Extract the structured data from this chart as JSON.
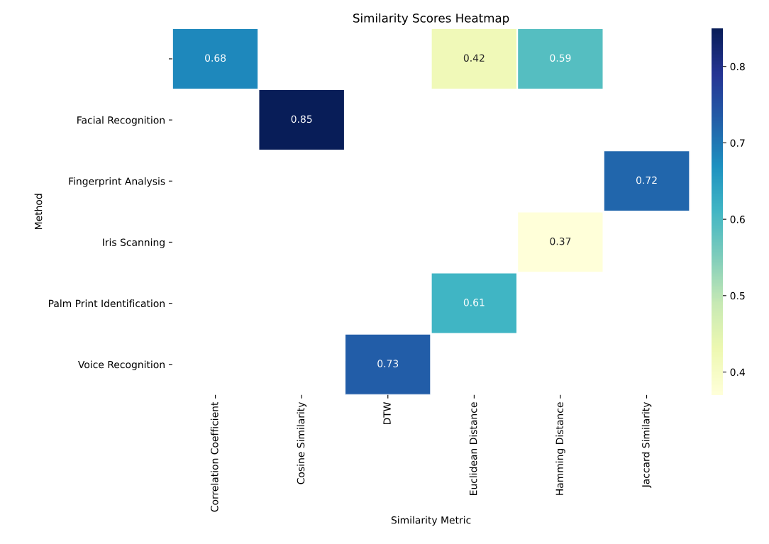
{
  "chart_data": {
    "type": "heatmap",
    "title": "Similarity Scores Heatmap",
    "xlabel": "Similarity Metric",
    "ylabel": "Method",
    "categories": [
      "Correlation Coefficient",
      "Cosine Similarity",
      "DTW",
      "Euclidean Distance",
      "Hamming Distance",
      "Jaccard Similarity"
    ],
    "y_categories": [
      null,
      "Facial Recognition",
      "Fingerprint Analysis",
      "Iris Scanning",
      "Palm Print Identification",
      "Voice Recognition"
    ],
    "cells": [
      [
        0.68,
        null,
        null,
        0.42,
        0.59,
        null
      ],
      [
        null,
        0.85,
        null,
        null,
        null,
        null
      ],
      [
        null,
        null,
        null,
        null,
        null,
        0.72
      ],
      [
        null,
        null,
        null,
        null,
        0.37,
        null
      ],
      [
        null,
        null,
        null,
        0.61,
        null,
        null
      ],
      [
        null,
        null,
        0.73,
        null,
        null,
        null
      ]
    ],
    "data_labels": true,
    "clim": [
      0.37,
      0.85
    ],
    "cticks": [
      0.4,
      0.5,
      0.6,
      0.7,
      0.8
    ]
  }
}
